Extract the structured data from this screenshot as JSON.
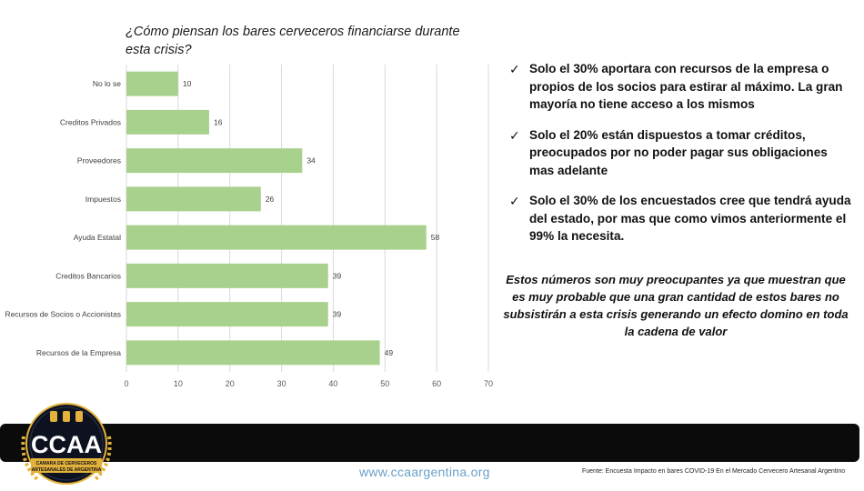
{
  "chart_data": {
    "type": "bar",
    "orientation": "horizontal",
    "title": "¿Cómo piensan los bares cerveceros  financiarse durante\nesta crisis?",
    "categories": [
      "No lo se",
      "Creditos Privados",
      "Proveedores",
      "Impuestos",
      "Ayuda Estatal",
      "Creditos Bancarios",
      "Recursos de Socios o Accionistas",
      "Recursos de la Empresa"
    ],
    "values": [
      10,
      16,
      34,
      26,
      58,
      39,
      39,
      49
    ],
    "xlim": [
      0,
      70
    ],
    "xticks": [
      0,
      10,
      20,
      30,
      40,
      50,
      60,
      70
    ],
    "grid": true,
    "bar_color": "#a9d18e",
    "xlabel": "",
    "ylabel": ""
  },
  "bullets": [
    "Solo el 30% aportara con recursos de la empresa o propios de los socios para estirar al máximo. La gran mayoría no tiene acceso a los mismos",
    "Solo el 20% están dispuestos a tomar créditos, preocupados por no poder pagar sus obligaciones mas adelante",
    "Solo el 30% de los encuestados cree que tendrá ayuda del estado, por mas que como vimos anteriormente el 99% la necesita."
  ],
  "check_glyph": "✓",
  "conclusion": "Estos números son muy preocupantes ya que muestran que es muy probable que una gran cantidad de estos bares no subsistirán a esta crisis generando un efecto domino en toda la cadena de valor",
  "footer": {
    "website": "www.ccaargentina.org",
    "source": "Fuente: Encuesta Impacto en bares COVID-19 En el Mercado Cervecero Artesanal Argentino"
  },
  "logo": {
    "text": "CCAA",
    "subtitle_line1": "CAMARA DE CERVECEROS",
    "subtitle_line2": "ARTESANALES DE ARGENTINA"
  },
  "colors": {
    "bar": "#a9d18e",
    "grid": "#d9d9d9",
    "footer_bar": "#0b0b0b",
    "website": "#6aa0c8",
    "logo_gold": "#e3b23c"
  }
}
